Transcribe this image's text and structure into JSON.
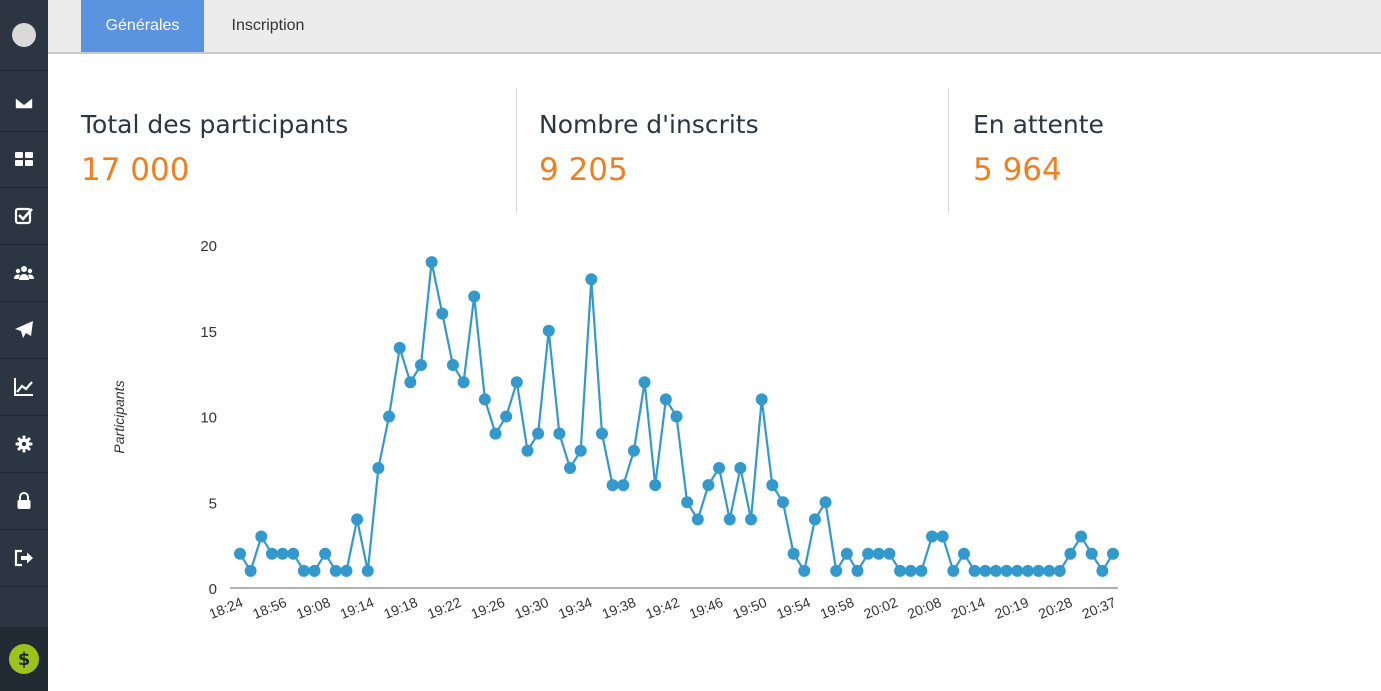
{
  "tabs": [
    {
      "label": "Générales",
      "active": true
    },
    {
      "label": "Inscription",
      "active": false
    }
  ],
  "sidebar": {
    "items": [
      {
        "icon": "envelope-icon"
      },
      {
        "icon": "dashboard-icon"
      },
      {
        "icon": "checkbox-icon"
      },
      {
        "icon": "users-icon"
      },
      {
        "icon": "paper-plane-icon"
      },
      {
        "icon": "line-chart-icon"
      },
      {
        "icon": "gear-icon"
      },
      {
        "icon": "lock-icon"
      },
      {
        "icon": "sign-out-icon"
      }
    ],
    "footer_icon": "dollar-icon",
    "footer_symbol": "$"
  },
  "stats": [
    {
      "label": "Total des participants",
      "value": "17 000"
    },
    {
      "label": "Nombre d'inscrits",
      "value": "9 205"
    },
    {
      "label": "En attente",
      "value": "5 964"
    }
  ],
  "colors": {
    "accent": "#f07f1e",
    "tab_active": "#5a93e0",
    "series": "#3399cc",
    "sidebar": "#2c3542"
  },
  "chart_data": {
    "type": "line",
    "ylabel": "Participants",
    "ylim": [
      0,
      20
    ],
    "yticks": [
      0,
      5,
      10,
      15,
      20
    ],
    "xtick_labels": [
      "18:24",
      "18:56",
      "19:08",
      "19:14",
      "19:18",
      "19:22",
      "19:26",
      "19:30",
      "19:34",
      "19:38",
      "19:42",
      "19:46",
      "19:50",
      "19:54",
      "19:58",
      "20:02",
      "20:08",
      "20:14",
      "20:19",
      "20:28",
      "20:37"
    ],
    "series": [
      {
        "values": [
          2,
          1,
          3,
          2,
          2,
          2,
          1,
          1,
          2,
          1,
          1,
          4,
          1,
          7,
          10,
          14,
          12,
          13,
          19,
          16,
          13,
          12,
          17,
          11,
          9,
          10,
          12,
          8,
          9,
          15,
          9,
          7,
          8,
          18,
          9,
          6,
          6,
          8,
          12,
          6,
          11,
          10,
          5,
          4,
          6,
          7,
          4,
          7,
          4,
          11,
          6,
          5,
          2,
          1,
          4,
          5,
          1,
          2,
          1,
          2,
          2,
          2,
          1,
          1,
          1,
          3,
          3,
          1,
          2,
          1,
          1,
          1,
          1,
          1,
          1,
          1,
          1,
          1,
          2,
          3,
          2,
          1,
          2
        ]
      }
    ]
  }
}
